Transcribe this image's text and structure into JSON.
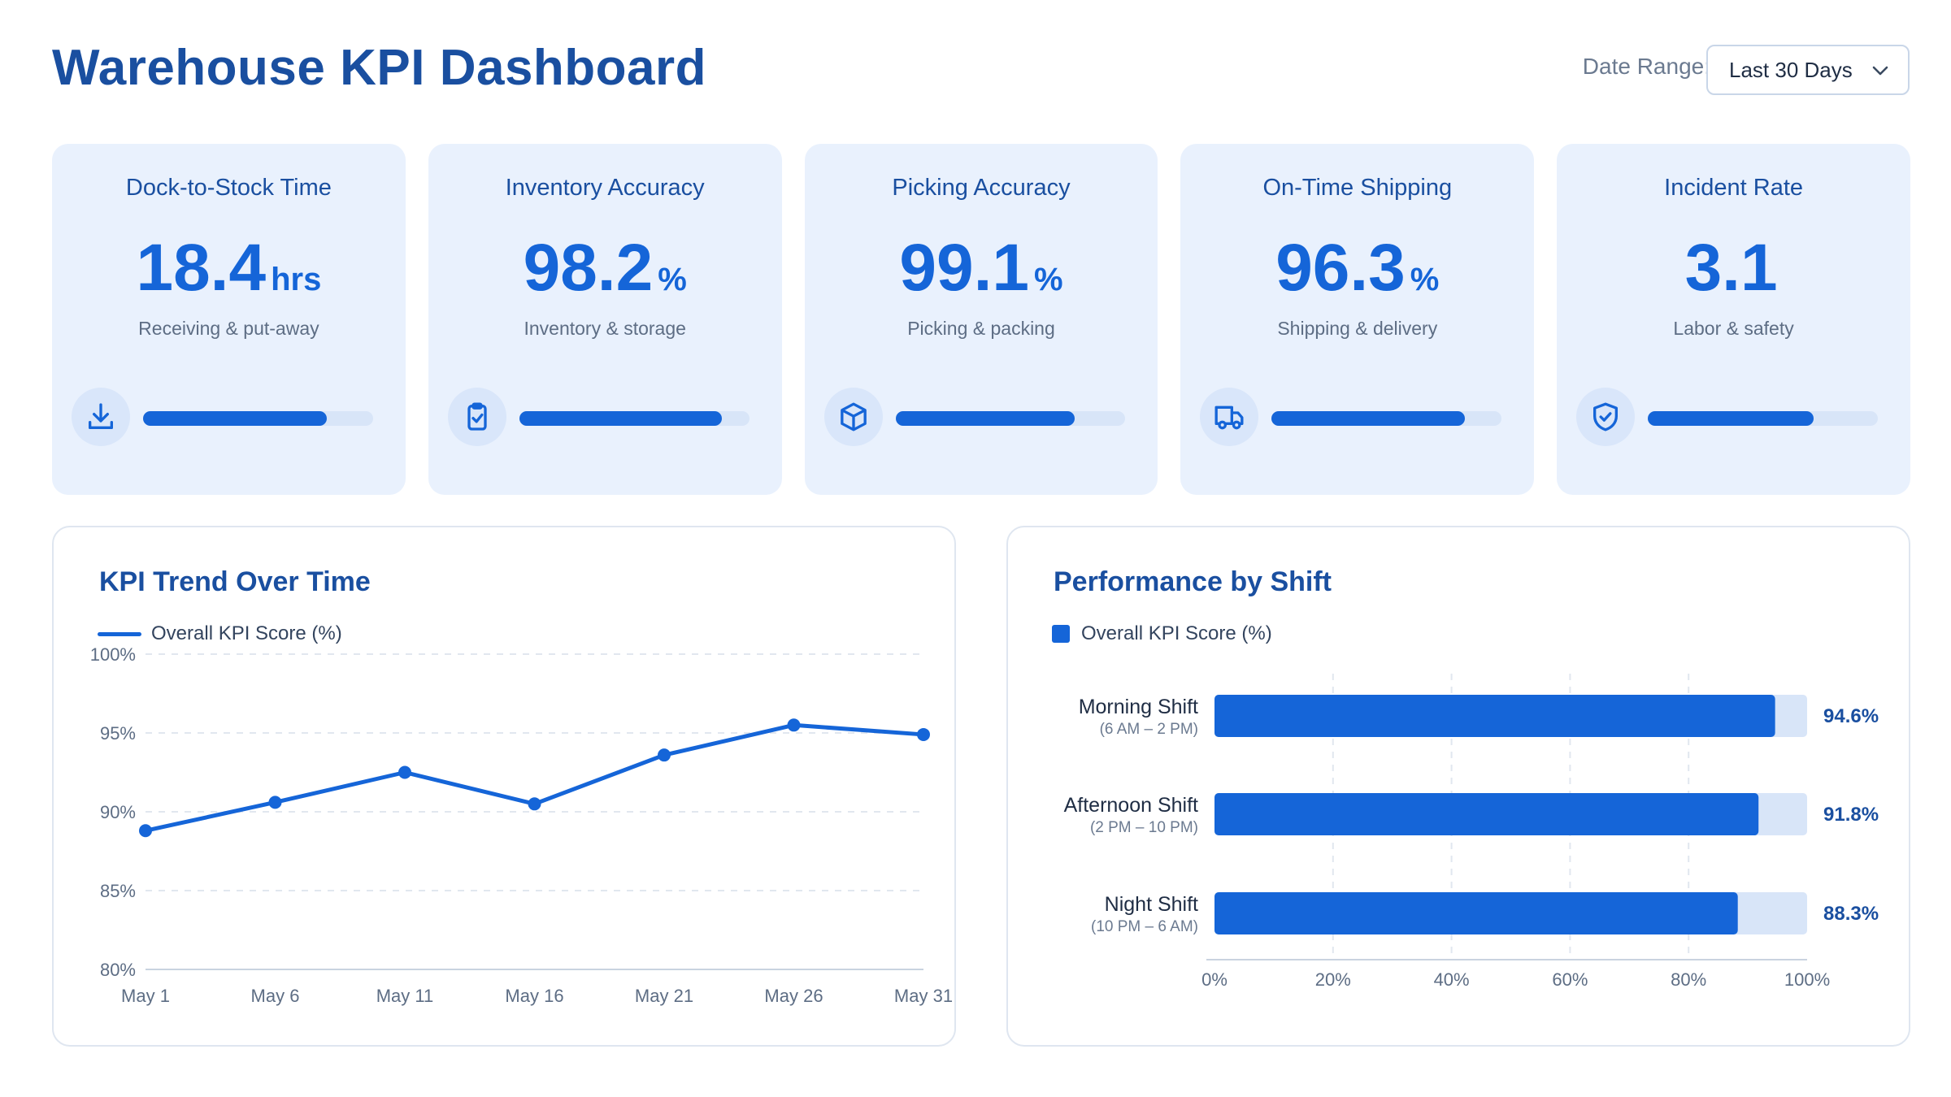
{
  "header": {
    "title": "Warehouse KPI Dashboard",
    "date_range_label": "Date Range:",
    "date_range_value": "Last 30 Days"
  },
  "kpis": [
    {
      "title": "Dock-to-Stock Time",
      "value": "18.4",
      "unit": "hrs",
      "subtitle": "Receiving & put-away",
      "icon": "download-icon",
      "progress": 0.8
    },
    {
      "title": "Inventory Accuracy",
      "value": "98.2",
      "unit": "%",
      "subtitle": "Inventory & storage",
      "icon": "clipboard-check-icon",
      "progress": 0.88
    },
    {
      "title": "Picking Accuracy",
      "value": "99.1",
      "unit": "%",
      "subtitle": "Picking & packing",
      "icon": "box-icon",
      "progress": 0.78
    },
    {
      "title": "On-Time Shipping",
      "value": "96.3",
      "unit": "%",
      "subtitle": "Shipping & delivery",
      "icon": "truck-icon",
      "progress": 0.84
    },
    {
      "title": "Incident Rate",
      "value": "3.1",
      "unit": "",
      "subtitle": "Labor & safety",
      "icon": "shield-check-icon",
      "progress": 0.72
    }
  ],
  "colors": {
    "accent": "#1565d8",
    "title": "#1a4fa0",
    "card_bg": "#e9f1fd",
    "track": "#d8e5f8"
  },
  "chart_data": [
    {
      "type": "line",
      "title": "KPI Trend Over Time",
      "series": [
        {
          "name": "Overall KPI Score (%)",
          "x": [
            "May 1",
            "May 6",
            "May 11",
            "May 16",
            "May 21",
            "May 26",
            "May 31"
          ],
          "values": [
            88.8,
            90.6,
            92.5,
            90.5,
            93.6,
            95.5,
            94.9
          ]
        }
      ],
      "yticks": [
        "80%",
        "85%",
        "90%",
        "95%",
        "100%"
      ],
      "ylim": [
        80,
        100
      ],
      "grid": true,
      "legend": "top-left"
    },
    {
      "type": "bar",
      "orientation": "horizontal",
      "title": "Performance by Shift",
      "categories": [
        "Morning Shift",
        "Afternoon Shift",
        "Night Shift"
      ],
      "category_sublabels": [
        "(6 AM – 2 PM)",
        "(2 PM – 10 PM)",
        "(10 PM – 6 AM)"
      ],
      "series": [
        {
          "name": "Overall KPI Score (%)",
          "values": [
            94.6,
            91.8,
            88.3
          ]
        }
      ],
      "value_labels": [
        "94.6%",
        "91.8%",
        "88.3%"
      ],
      "xticks": [
        "0%",
        "20%",
        "40%",
        "60%",
        "80%",
        "100%"
      ],
      "xlim": [
        0,
        100
      ],
      "grid": true,
      "legend": "top-left"
    }
  ]
}
